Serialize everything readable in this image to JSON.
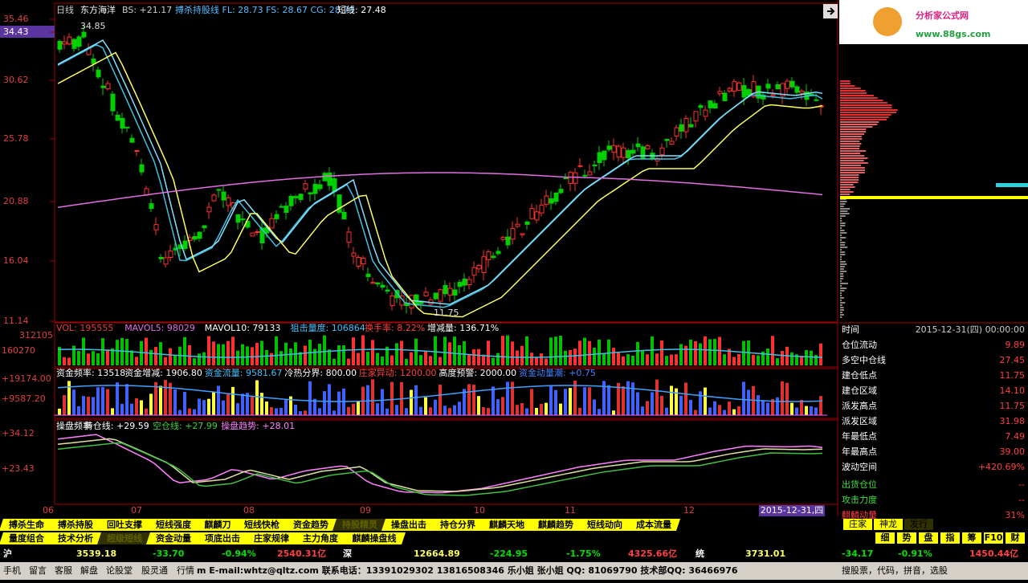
{
  "header": {
    "period": "日线",
    "stock": "东方海洋",
    "bs": "BS: +21.17",
    "fl": "搏杀持股线 FL: 28.73 FS: 28.67 CG: 28.70",
    "short": "短线: 27.48"
  },
  "price_axis": [
    "35.46",
    "34.43",
    "30.62",
    "25.78",
    "20.88",
    "16.04",
    "11.14"
  ],
  "annotations": {
    "high": "34.85",
    "low": "11.75"
  },
  "vol_header": [
    "VOL: 195555",
    "MAVOL5: 98029",
    "MAVOL10: 79133",
    "狙击量度: 106864",
    "换手率: 8.22%",
    "增减量: 136.71%"
  ],
  "vol_axis": [
    "312105",
    "160270"
  ],
  "fund_header": [
    "资金频率: 13518",
    "资金增减: 1906.80",
    "资金流量: 9581.67",
    "冷热分界: 800.00",
    "庄家异动: 1200.00",
    "高度预警: 2000.00",
    "资金动量潮: +0.75"
  ],
  "fund_axis": [
    "+19174.00",
    "+9587.20"
  ],
  "op_header": [
    "操盘频率",
    "持仓线: +29.59",
    "空仓线: +27.99",
    "操盘趋势: +28.01"
  ],
  "op_axis": [
    "+34.12",
    "+23.43"
  ],
  "x_axis": [
    "06",
    "07",
    "08",
    "09",
    "10",
    "11",
    "12"
  ],
  "date_label": "2015-12-31,四",
  "tabs_row1": [
    "搏杀生命",
    "搏杀持股",
    "回吐支撑",
    "短线强度",
    "麒麟刀",
    "短线快枪",
    "资金趋势",
    "持股精灵",
    "操盘出击",
    "持仓分界",
    "麒麟天地",
    "麒麟趋势",
    "短线动向",
    "成本流量"
  ],
  "tabs_row2": [
    "量度组合",
    "技术分析",
    "超级短线",
    "资金动量",
    "项底出击",
    "庄家规律",
    "主力角度",
    "麒麟操盘线"
  ],
  "index_bar": [
    "沪",
    "3539.18",
    "-33.70",
    "-0.94%",
    "2540.31亿",
    "深",
    "12664.89",
    "-224.95",
    "-1.75%",
    "4325.66亿",
    "统",
    "3731.01",
    "-34.17",
    "-0.91%",
    "1450.44亿"
  ],
  "taskbar": [
    "手机",
    "留言",
    "客服",
    "解盘",
    "论股堂",
    "股灵通",
    "行情"
  ],
  "marquee": "m    E-mail:whtz@qltz.com    联系电话：13391029302   13816508346   乐小姐   张小姐   QQ: 81069790    技术部QQ: 36466976",
  "search": "搜股票，代码，拼音，选股",
  "logo": {
    "title": "分析家公式网",
    "url": "www.88gs.com"
  },
  "info_rows": [
    [
      "时间",
      "2015-12-31(四) 00:00:00"
    ],
    [
      "仓位流动",
      "9.89"
    ],
    [
      "多空中仓线",
      "27.45"
    ],
    [
      "建仓低点",
      "11.75"
    ],
    [
      "建仓区域",
      "14.10"
    ],
    [
      "派发高点",
      "11.75"
    ],
    [
      "派发区域",
      "31.98"
    ],
    [
      "年最低点",
      "7.49"
    ],
    [
      "年最高点",
      "39.00"
    ],
    [
      "波动空间",
      "+420.69%"
    ],
    [
      "出货仓位",
      "--"
    ],
    [
      "攻击力度",
      "--"
    ],
    [
      "麒麟动量",
      "31%"
    ]
  ],
  "right_tabs1": [
    "庄家",
    "神龙",
    "发行"
  ],
  "right_tabs2": [
    "细",
    "势",
    "盘",
    "指",
    "筹",
    "F10",
    "财"
  ]
}
